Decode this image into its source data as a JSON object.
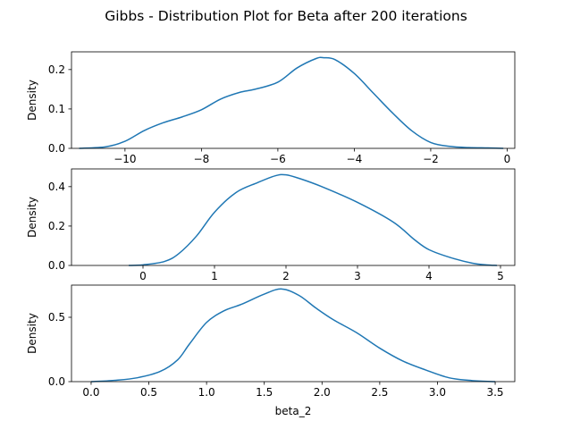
{
  "figure": {
    "title": "Gibbs - Distribution Plot for Beta after 200 iterations"
  },
  "colors": {
    "line": "#1f77b4",
    "axes": "#000000",
    "background": "#ffffff"
  },
  "chart_data": [
    {
      "type": "line",
      "xlabel": "",
      "ylabel": "Density",
      "xlim": [
        -11.4,
        0.2
      ],
      "ylim": [
        0,
        0.245
      ],
      "xticks": [
        -10,
        -8,
        -6,
        -4,
        -2,
        0
      ],
      "xtick_labels": [
        "−10",
        "−8",
        "−6",
        "−4",
        "−2",
        "0"
      ],
      "yticks": [
        0,
        0.1,
        0.2
      ],
      "ytick_labels": [
        "0.0",
        "0.1",
        "0.2"
      ],
      "grid": false,
      "series": [
        {
          "x": [
            -11.2,
            -10.5,
            -10.0,
            -9.5,
            -9.0,
            -8.5,
            -8.0,
            -7.5,
            -7.0,
            -6.6,
            -6.0,
            -5.5,
            -5.0,
            -4.8,
            -4.5,
            -4.0,
            -3.5,
            -3.0,
            -2.5,
            -2.0,
            -1.5,
            -1.0,
            -0.5,
            -0.1
          ],
          "y": [
            0.0,
            0.004,
            0.018,
            0.045,
            0.065,
            0.08,
            0.098,
            0.125,
            0.142,
            0.15,
            0.168,
            0.204,
            0.228,
            0.23,
            0.225,
            0.19,
            0.14,
            0.09,
            0.045,
            0.015,
            0.005,
            0.002,
            0.001,
            0.0
          ]
        }
      ]
    },
    {
      "type": "line",
      "xlabel": "",
      "ylabel": "Density",
      "xlim": [
        -1.0,
        5.2
      ],
      "ylim": [
        0,
        0.49
      ],
      "xticks": [
        0,
        1,
        2,
        3,
        4,
        5
      ],
      "xtick_labels": [
        "0",
        "1",
        "2",
        "3",
        "4",
        "5"
      ],
      "yticks": [
        0,
        0.2,
        0.4
      ],
      "ytick_labels": [
        "0.0",
        "0.2",
        "0.4"
      ],
      "grid": false,
      "series": [
        {
          "x": [
            -0.2,
            0.0,
            0.3,
            0.5,
            0.75,
            1.0,
            1.3,
            1.6,
            1.85,
            2.0,
            2.2,
            2.5,
            3.0,
            3.5,
            3.8,
            4.0,
            4.3,
            4.6,
            4.8,
            4.95
          ],
          "y": [
            0.0,
            0.003,
            0.02,
            0.06,
            0.15,
            0.27,
            0.37,
            0.42,
            0.455,
            0.46,
            0.44,
            0.4,
            0.32,
            0.22,
            0.13,
            0.08,
            0.04,
            0.012,
            0.003,
            0.0
          ]
        }
      ]
    },
    {
      "type": "line",
      "xlabel": "beta_2",
      "ylabel": "Density",
      "xlim": [
        -0.17,
        3.67
      ],
      "ylim": [
        0,
        0.75
      ],
      "xticks": [
        0,
        0.5,
        1.0,
        1.5,
        2.0,
        2.5,
        3.0,
        3.5
      ],
      "xtick_labels": [
        "0.0",
        "0.5",
        "1.0",
        "1.5",
        "2.0",
        "2.5",
        "3.0",
        "3.5"
      ],
      "yticks": [
        0,
        0.5
      ],
      "ytick_labels": [
        "0.0",
        "0.5"
      ],
      "grid": false,
      "series": [
        {
          "x": [
            0.0,
            0.2,
            0.4,
            0.6,
            0.75,
            0.85,
            1.0,
            1.15,
            1.3,
            1.5,
            1.65,
            1.8,
            1.95,
            2.1,
            2.3,
            2.5,
            2.7,
            2.9,
            3.1,
            3.3,
            3.5
          ],
          "y": [
            0.0,
            0.01,
            0.03,
            0.08,
            0.17,
            0.29,
            0.46,
            0.55,
            0.6,
            0.68,
            0.72,
            0.67,
            0.57,
            0.48,
            0.38,
            0.26,
            0.16,
            0.09,
            0.03,
            0.008,
            0.0
          ]
        }
      ]
    }
  ]
}
